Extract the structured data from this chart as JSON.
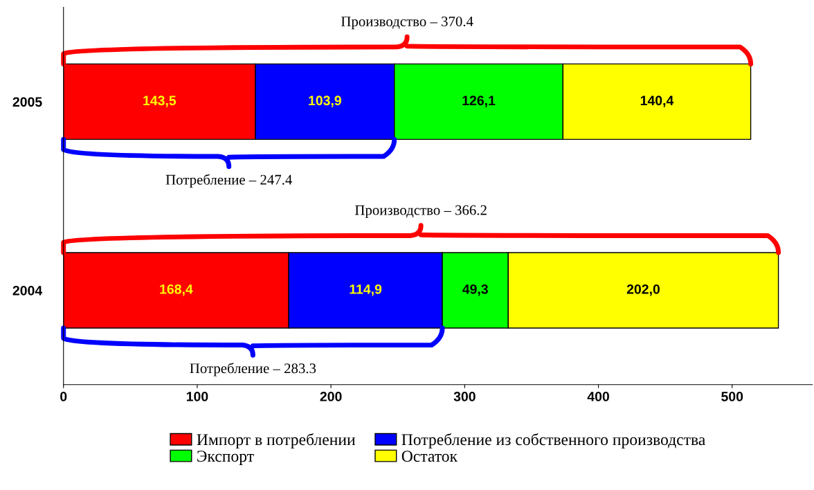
{
  "chart_data": {
    "type": "bar",
    "orientation": "horizontal",
    "stacked": true,
    "data_labels": true,
    "categories": [
      "2005",
      "2004"
    ],
    "series": [
      {
        "name": "Импорт в потреблении",
        "color": "#ff0000",
        "values": [
          143.5,
          168.4
        ],
        "value_labels": [
          "143,5",
          "168,4"
        ]
      },
      {
        "name": "Потребление из собственного производства",
        "color": "#0000ff",
        "values": [
          103.9,
          114.9
        ],
        "value_labels": [
          "103,9",
          "114,9"
        ]
      },
      {
        "name": "Экспорт",
        "color": "#00ff00",
        "values": [
          126.1,
          49.3
        ],
        "value_labels": [
          "126,1",
          "49,3"
        ]
      },
      {
        "name": "Остаток",
        "color": "#ffff00",
        "values": [
          140.4,
          202.0
        ],
        "value_labels": [
          "140,4",
          "202,0"
        ]
      }
    ],
    "xlim": [
      0,
      560
    ],
    "xticks": [
      0,
      100,
      200,
      300,
      400,
      500
    ],
    "grid": false,
    "legend": "bottom",
    "annotations": [
      "Производство – 370.4",
      "Потребление – 247.4",
      "Производство – 366.2",
      "Потребление – 283.3"
    ]
  }
}
